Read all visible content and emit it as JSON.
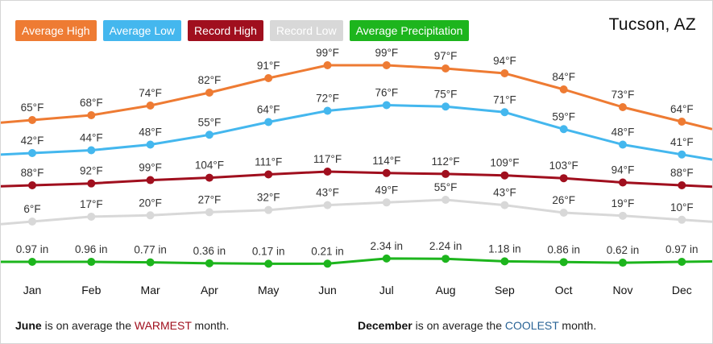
{
  "city": "Tucson, AZ",
  "legend": [
    {
      "label": "Average High",
      "color": "#ee7b33"
    },
    {
      "label": "Average Low",
      "color": "#44b7ee"
    },
    {
      "label": "Record High",
      "color": "#a00f1e"
    },
    {
      "label": "Record Low",
      "color": "#d8d8d8"
    },
    {
      "label": "Average Precipitation",
      "color": "#1db51d"
    }
  ],
  "chart_data": {
    "type": "line",
    "categories": [
      "Jan",
      "Feb",
      "Mar",
      "Apr",
      "May",
      "Jun",
      "Jul",
      "Aug",
      "Sep",
      "Oct",
      "Nov",
      "Dec"
    ],
    "series": [
      {
        "name": "Average High",
        "color": "#ee7b33",
        "values": [
          65,
          68,
          74,
          82,
          91,
          99,
          99,
          97,
          94,
          84,
          73,
          64
        ],
        "labels": [
          "65°F",
          "68°F",
          "74°F",
          "82°F",
          "91°F",
          "99°F",
          "99°F",
          "97°F",
          "94°F",
          "84°F",
          "73°F",
          "64°F"
        ]
      },
      {
        "name": "Average Low",
        "color": "#44b7ee",
        "values": [
          42,
          44,
          48,
          55,
          64,
          72,
          76,
          75,
          71,
          59,
          48,
          41
        ],
        "labels": [
          "42°F",
          "44°F",
          "48°F",
          "55°F",
          "64°F",
          "72°F",
          "76°F",
          "75°F",
          "71°F",
          "59°F",
          "48°F",
          "41°F"
        ]
      },
      {
        "name": "Record High",
        "color": "#a00f1e",
        "values": [
          88,
          92,
          99,
          104,
          111,
          117,
          114,
          112,
          109,
          103,
          94,
          88
        ],
        "labels": [
          "88°F",
          "92°F",
          "99°F",
          "104°F",
          "111°F",
          "117°F",
          "114°F",
          "112°F",
          "109°F",
          "103°F",
          "94°F",
          "88°F"
        ]
      },
      {
        "name": "Record Low",
        "color": "#d8d8d8",
        "values": [
          6,
          17,
          20,
          27,
          32,
          43,
          49,
          55,
          43,
          26,
          19,
          10
        ],
        "labels": [
          "6°F",
          "17°F",
          "20°F",
          "27°F",
          "32°F",
          "43°F",
          "49°F",
          "55°F",
          "43°F",
          "26°F",
          "19°F",
          "10°F"
        ]
      },
      {
        "name": "Average Precipitation",
        "color": "#1db51d",
        "values": [
          0.97,
          0.96,
          0.77,
          0.36,
          0.17,
          0.21,
          2.34,
          2.24,
          1.18,
          0.86,
          0.62,
          0.97
        ],
        "labels": [
          "0.97 in",
          "0.96 in",
          "0.77 in",
          "0.36 in",
          "0.17 in",
          "0.21 in",
          "2.34 in",
          "2.24 in",
          "1.18 in",
          "0.86 in",
          "0.62 in",
          "0.97 in"
        ]
      }
    ]
  },
  "footer": {
    "warm_month": "June",
    "warm_text_before": " is on average the ",
    "warm_word": "WARMEST",
    "warm_text_after": " month.",
    "cool_month": "December",
    "cool_text_before": " is on average the ",
    "cool_word": "COOLEST",
    "cool_text_after": " month."
  }
}
